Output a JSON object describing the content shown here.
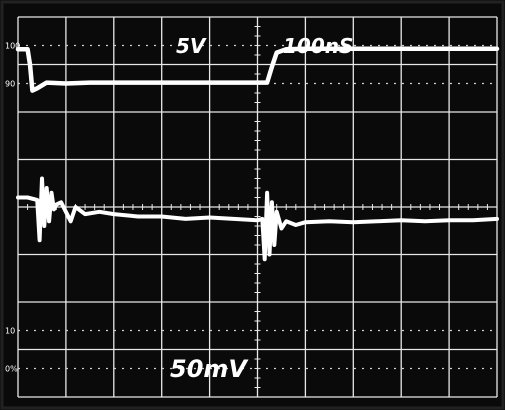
{
  "chart_data": {
    "type": "line",
    "title": "",
    "xlabel": "",
    "ylabel": "",
    "grid": true,
    "divisions": {
      "x": 10,
      "y": 8
    },
    "ylim": [
      0,
      8
    ],
    "xlim": [
      0,
      10
    ],
    "labels": {
      "channel1_scale": "5V",
      "timebase": "100nS",
      "channel2_scale": "50mV"
    },
    "percent_markers": [
      "100",
      "90",
      "10",
      "0%"
    ],
    "series": [
      {
        "x": [
          0.0,
          0.2,
          0.25,
          0.3,
          0.4,
          0.6,
          1.0,
          1.5,
          2.0,
          3.0,
          4.0,
          5.0,
          5.2,
          5.3,
          5.4,
          5.6,
          6.0,
          7.0,
          8.0,
          9.0,
          10.0
        ],
        "y": [
          7.32,
          7.32,
          7.0,
          6.45,
          6.5,
          6.62,
          6.6,
          6.62,
          6.62,
          6.62,
          6.62,
          6.62,
          6.62,
          6.95,
          7.25,
          7.32,
          7.33,
          7.33,
          7.33,
          7.33,
          7.33
        ]
      },
      {
        "x": [
          0.0,
          0.2,
          0.4,
          0.45,
          0.5,
          0.55,
          0.6,
          0.65,
          0.7,
          0.75,
          0.8,
          0.9,
          1.0,
          1.1,
          1.2,
          1.4,
          1.7,
          2.0,
          2.5,
          3.0,
          3.5,
          4.0,
          4.5,
          5.0,
          5.1,
          5.15,
          5.2,
          5.25,
          5.3,
          5.35,
          5.4,
          5.5,
          5.6,
          5.8,
          6.0,
          6.5,
          7.0,
          7.5,
          8.0,
          8.5,
          9.0,
          9.5,
          10.0
        ],
        "y": [
          4.2,
          4.2,
          4.15,
          3.3,
          4.6,
          3.6,
          4.4,
          3.7,
          4.3,
          3.95,
          4.05,
          4.1,
          3.9,
          3.7,
          4.0,
          3.85,
          3.9,
          3.85,
          3.8,
          3.8,
          3.75,
          3.78,
          3.75,
          3.72,
          3.75,
          2.9,
          4.3,
          3.0,
          4.1,
          3.2,
          3.9,
          3.55,
          3.7,
          3.62,
          3.68,
          3.7,
          3.68,
          3.7,
          3.72,
          3.7,
          3.72,
          3.72,
          3.75
        ]
      }
    ]
  }
}
